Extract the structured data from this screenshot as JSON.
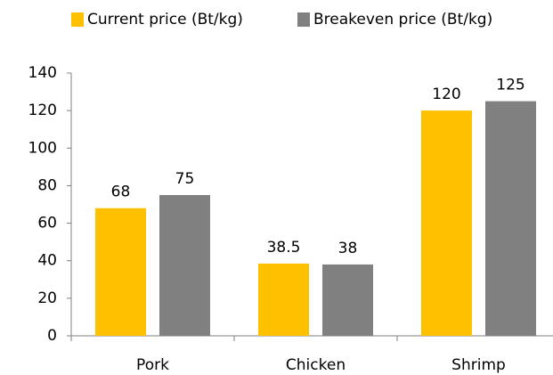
{
  "chart_data": {
    "type": "bar",
    "categories": [
      "Pork",
      "Chicken",
      "Shrimp"
    ],
    "series": [
      {
        "name": "Current price (Bt/kg)",
        "color": "#FFC000",
        "values": [
          68,
          38.5,
          120
        ]
      },
      {
        "name": "Breakeven price (Bt/kg)",
        "color": "#808080",
        "values": [
          75,
          38,
          125
        ]
      }
    ],
    "ylim": [
      0,
      140
    ],
    "yticks": [
      0,
      20,
      40,
      60,
      80,
      100,
      120,
      140
    ],
    "legend": "top"
  }
}
